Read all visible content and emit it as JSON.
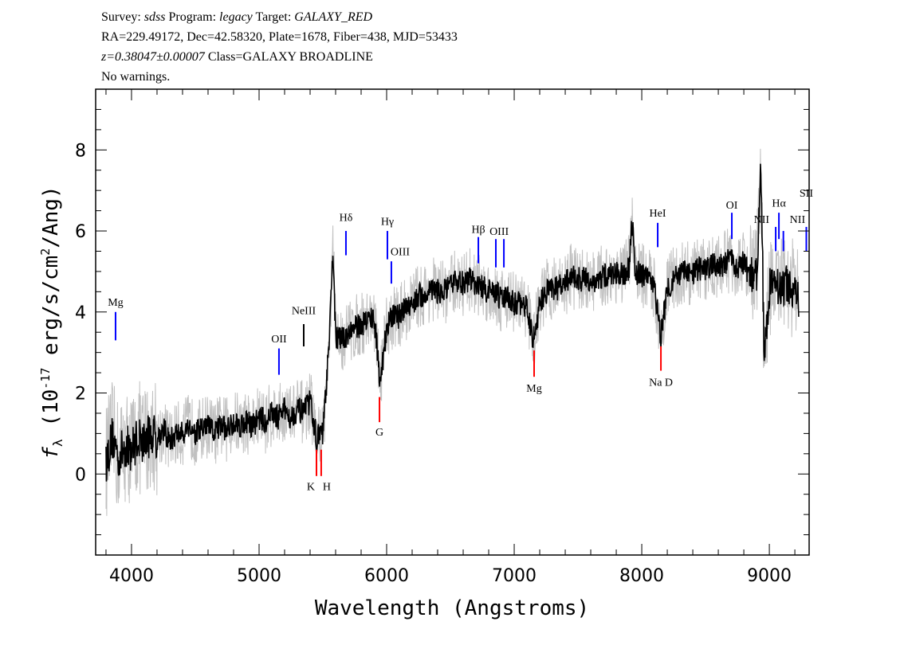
{
  "header": {
    "line1": {
      "survey_label": "Survey: ",
      "survey": "sdss",
      "program_label": " Program: ",
      "program": "legacy",
      "target_label": " Target: ",
      "target": "GALAXY_RED"
    },
    "line2": "RA=229.49172, Dec=42.58320, Plate=1678, Fiber=438, MJD=53433",
    "line3": {
      "redshift": "z=0.38047±0.00007",
      "class": " Class=GALAXY BROADLINE"
    },
    "line4": "No warnings."
  },
  "chart_data": {
    "type": "line",
    "xlabel": "Wavelength (Angstroms)",
    "ylabel": "f_λ (10^-17 erg/s/cm^2/Ang)",
    "xlim": [
      3719,
      9312
    ],
    "ylim": [
      -2.0,
      9.5
    ],
    "xticks": [
      4000,
      5000,
      6000,
      7000,
      8000,
      9000
    ],
    "yticks": [
      0,
      2,
      4,
      6,
      8
    ],
    "grid": false,
    "colors": {
      "flux": "#000000",
      "error_band": "#c0c0c0",
      "emission": "#0000ff",
      "absorption": "#ff0000",
      "other": "#000000"
    },
    "flux": {
      "x": [
        3800,
        3850,
        3900,
        3950,
        4000,
        4050,
        4100,
        4150,
        4200,
        4250,
        4300,
        4350,
        4400,
        4450,
        4500,
        4550,
        4600,
        4650,
        4700,
        4750,
        4800,
        4850,
        4900,
        4950,
        5000,
        5050,
        5100,
        5150,
        5200,
        5250,
        5300,
        5350,
        5400,
        5450,
        5500,
        5550,
        5580,
        5600,
        5650,
        5700,
        5750,
        5800,
        5850,
        5900,
        5950,
        6000,
        6050,
        6100,
        6150,
        6200,
        6250,
        6300,
        6350,
        6400,
        6450,
        6500,
        6550,
        6600,
        6650,
        6700,
        6750,
        6800,
        6850,
        6900,
        6950,
        7000,
        7050,
        7100,
        7150,
        7200,
        7250,
        7300,
        7350,
        7400,
        7450,
        7500,
        7550,
        7600,
        7650,
        7700,
        7750,
        7800,
        7850,
        7900,
        7925,
        7950,
        8000,
        8050,
        8100,
        8150,
        8200,
        8250,
        8300,
        8350,
        8400,
        8450,
        8500,
        8550,
        8600,
        8650,
        8700,
        8750,
        8800,
        8850,
        8900,
        8935,
        8960,
        9000,
        9050,
        9100,
        9150,
        9200,
        9230
      ],
      "y": [
        0.3,
        0.9,
        0.4,
        0.7,
        0.6,
        0.9,
        0.8,
        1.0,
        0.9,
        1.1,
        0.8,
        1.0,
        1.0,
        1.2,
        1.0,
        1.1,
        1.2,
        1.0,
        1.2,
        1.1,
        1.3,
        1.2,
        1.3,
        1.2,
        1.4,
        1.3,
        1.5,
        1.4,
        1.6,
        1.4,
        1.6,
        1.5,
        1.8,
        0.9,
        1.0,
        3.2,
        5.6,
        3.4,
        3.3,
        3.5,
        3.6,
        3.7,
        3.8,
        3.9,
        2.3,
        3.6,
        3.9,
        3.9,
        4.1,
        4.2,
        4.4,
        4.4,
        4.6,
        4.5,
        4.5,
        4.6,
        4.8,
        4.7,
        4.8,
        4.7,
        4.6,
        4.5,
        4.5,
        4.3,
        4.4,
        4.2,
        4.2,
        4.1,
        3.3,
        4.2,
        4.5,
        4.6,
        4.6,
        4.7,
        4.9,
        4.8,
        4.8,
        4.8,
        4.7,
        4.9,
        4.9,
        5.0,
        4.9,
        5.1,
        6.2,
        5.0,
        4.9,
        4.8,
        4.6,
        3.4,
        4.6,
        4.8,
        4.9,
        5.0,
        4.9,
        5.1,
        5.0,
        5.2,
        5.1,
        5.2,
        5.3,
        5.1,
        5.2,
        4.9,
        5.0,
        7.6,
        2.7,
        4.6,
        4.7,
        4.6,
        4.7,
        4.5,
        4.2
      ]
    },
    "lines": [
      {
        "label": "Mg",
        "wavelength": 3875,
        "kind": "emission"
      },
      {
        "label": "OII",
        "wavelength": 5156,
        "kind": "emission"
      },
      {
        "label": "NeIII",
        "wavelength": 5350,
        "kind": "other"
      },
      {
        "label": "Hδ",
        "wavelength": 5681,
        "kind": "emission"
      },
      {
        "label": "Hγ",
        "wavelength": 6006,
        "kind": "emission"
      },
      {
        "label": "OIII",
        "wavelength": 6037,
        "kind": "emission"
      },
      {
        "label": "Hβ",
        "wavelength": 6719,
        "kind": "emission"
      },
      {
        "label": "OIII",
        "wavelength": 6919,
        "kind": "emission",
        "second_wavelength": 6856
      },
      {
        "label": "HeI",
        "wavelength": 8125,
        "kind": "emission"
      },
      {
        "label": "OI",
        "wavelength": 8706,
        "kind": "emission"
      },
      {
        "label": "NII",
        "wavelength": 9050,
        "kind": "emission"
      },
      {
        "label": "Hα",
        "wavelength": 9075,
        "kind": "emission"
      },
      {
        "label": "NII",
        "wavelength": 9110,
        "kind": "emission"
      },
      {
        "label": "SII",
        "wavelength": 9290,
        "kind": "emission"
      },
      {
        "label": "K",
        "wavelength": 5450,
        "kind": "absorption"
      },
      {
        "label": "H",
        "wavelength": 5487,
        "kind": "absorption"
      },
      {
        "label": "G",
        "wavelength": 5944,
        "kind": "absorption"
      },
      {
        "label": "Mg",
        "wavelength": 7156,
        "kind": "absorption"
      },
      {
        "label": "Na D",
        "wavelength": 8150,
        "kind": "absorption"
      }
    ]
  }
}
